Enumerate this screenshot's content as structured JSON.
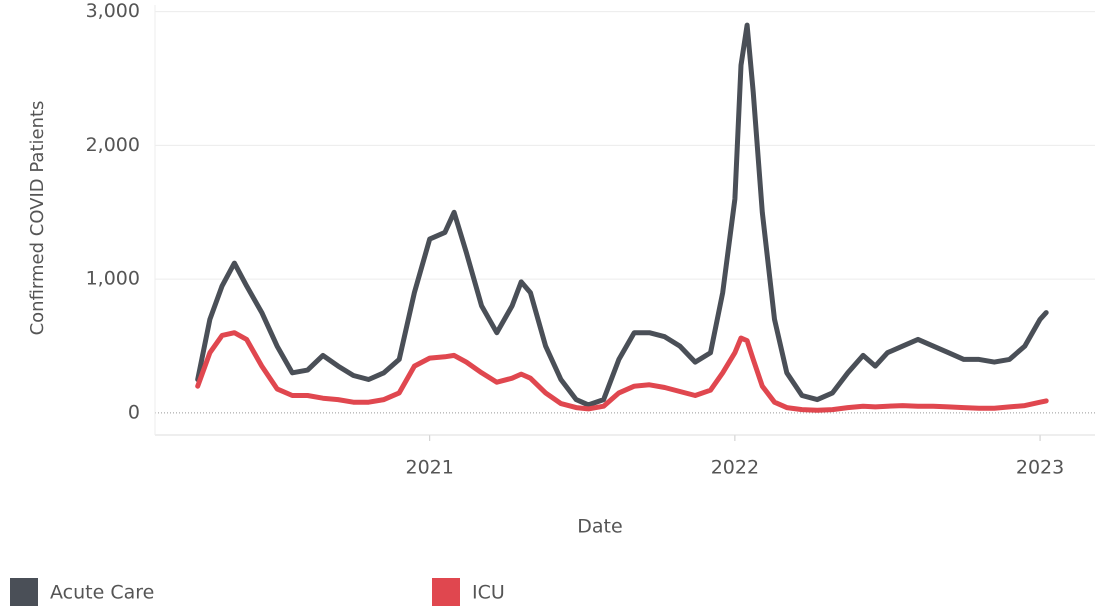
{
  "chart_data": {
    "type": "line",
    "x_label": "Date",
    "y_label": "Confirmed COVID Patients",
    "x": [
      2020.24,
      2020.28,
      2020.32,
      2020.36,
      2020.4,
      2020.45,
      2020.5,
      2020.55,
      2020.6,
      2020.65,
      2020.7,
      2020.75,
      2020.8,
      2020.85,
      2020.9,
      2020.95,
      2021.0,
      2021.05,
      2021.08,
      2021.12,
      2021.17,
      2021.22,
      2021.27,
      2021.3,
      2021.33,
      2021.38,
      2021.43,
      2021.48,
      2021.52,
      2021.57,
      2021.62,
      2021.67,
      2021.72,
      2021.77,
      2021.82,
      2021.87,
      2021.92,
      2021.96,
      2022.0,
      2022.02,
      2022.04,
      2022.06,
      2022.09,
      2022.13,
      2022.17,
      2022.22,
      2022.27,
      2022.32,
      2022.37,
      2022.42,
      2022.46,
      2022.5,
      2022.55,
      2022.6,
      2022.65,
      2022.7,
      2022.75,
      2022.8,
      2022.85,
      2022.9,
      2022.95,
      2023.0,
      2023.02
    ],
    "series": [
      {
        "name": "Acute Care",
        "color": "#4a4f57",
        "values": [
          250,
          700,
          950,
          1120,
          950,
          750,
          500,
          300,
          320,
          430,
          350,
          280,
          250,
          300,
          400,
          900,
          1300,
          1350,
          1500,
          1200,
          800,
          600,
          800,
          980,
          900,
          500,
          250,
          100,
          60,
          100,
          400,
          600,
          600,
          570,
          500,
          380,
          450,
          900,
          1600,
          2600,
          2900,
          2400,
          1500,
          700,
          300,
          130,
          100,
          150,
          300,
          430,
          350,
          450,
          500,
          550,
          500,
          450,
          400,
          400,
          380,
          400,
          500,
          700,
          750
        ]
      },
      {
        "name": "ICU",
        "color": "#e0474f",
        "values": [
          200,
          450,
          580,
          600,
          550,
          350,
          180,
          130,
          130,
          110,
          100,
          80,
          80,
          100,
          150,
          350,
          410,
          420,
          430,
          380,
          300,
          230,
          260,
          290,
          260,
          150,
          70,
          40,
          30,
          50,
          150,
          200,
          210,
          190,
          160,
          130,
          170,
          300,
          450,
          560,
          540,
          400,
          200,
          80,
          40,
          25,
          20,
          25,
          40,
          50,
          45,
          50,
          55,
          50,
          50,
          45,
          40,
          35,
          35,
          45,
          55,
          80,
          90
        ]
      }
    ],
    "xlim": [
      2020.1,
      2023.18
    ],
    "xticks": [
      2021,
      2022,
      2023
    ],
    "ylim": [
      -165,
      3050
    ],
    "yticks": [
      0,
      {
        "value": 1000,
        "label": "1,000"
      },
      {
        "value": 2000,
        "label": "2,000"
      },
      {
        "value": 3000,
        "label": "3,000"
      }
    ],
    "grid": true,
    "legend": "bottom"
  }
}
